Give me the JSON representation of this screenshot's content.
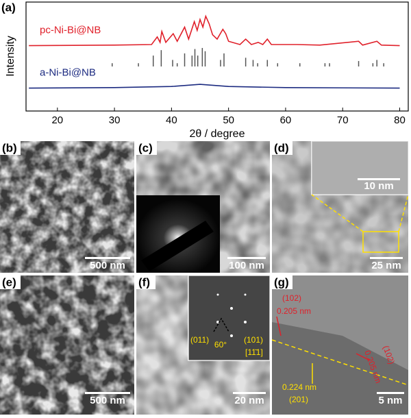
{
  "chart_data": {
    "type": "line",
    "panel_label": "(a)",
    "x_label": "2θ / degree",
    "y_label": "Intensity",
    "xlim": [
      14.5,
      81.5
    ],
    "xticks": [
      20,
      30,
      40,
      50,
      60,
      70,
      80
    ],
    "ylim": [
      0,
      100
    ],
    "series": [
      {
        "name": "pc-Ni-Bi@NB",
        "color": "#e0202a",
        "x": [
          15,
          30,
          36.5,
          37.5,
          38.0,
          38.3,
          39,
          40.3,
          41,
          42.3,
          43,
          44,
          44.5,
          45,
          45.5,
          46,
          46.6,
          47.2,
          48,
          49,
          49.5,
          50,
          52,
          53,
          54,
          55.2,
          56,
          56.8,
          57.5,
          62,
          66,
          72.8,
          73.5,
          76,
          76.8,
          80
        ],
        "values": [
          60,
          60.5,
          61,
          68,
          63,
          73,
          63,
          71,
          64,
          77,
          66,
          82,
          74,
          84,
          77,
          87,
          80,
          70,
          66,
          75,
          71,
          64,
          61,
          66,
          61,
          63,
          61,
          66,
          61,
          61,
          60.5,
          64,
          60.5,
          64,
          60.5,
          60
        ]
      },
      {
        "name": "a-Ni-Bi@NB",
        "color": "#1b2a80",
        "x": [
          15,
          30,
          40,
          45,
          50,
          60,
          80
        ],
        "values": [
          21,
          21.5,
          22.5,
          24.5,
          22.5,
          21.5,
          21
        ]
      }
    ],
    "reference": {
      "color": "#555555",
      "x": [
        29.6,
        34.2,
        36.8,
        38.2,
        40.2,
        41,
        42.3,
        43.6,
        44.1,
        44.6,
        45.4,
        45.9,
        48.6,
        49.2,
        53,
        54.3,
        55.1,
        56.8,
        58.6,
        62.5,
        66.9,
        67.7,
        72.8,
        75.3,
        76,
        77.2
      ],
      "values": [
        3,
        3,
        10,
        15,
        6,
        3,
        12,
        10,
        16,
        10,
        17,
        14,
        6,
        12,
        8,
        6,
        3,
        6,
        3,
        3,
        3,
        3,
        5,
        3,
        6,
        3
      ]
    }
  },
  "panels": [
    {
      "label": "(b)",
      "scale_bar": "500 nm"
    },
    {
      "label": "(c)",
      "scale_bar": "100 nm"
    },
    {
      "label": "(d)",
      "scale_bar": "25 nm",
      "inset_scale_bar": "10 nm"
    },
    {
      "label": "(e)",
      "scale_bar": "500 nm"
    },
    {
      "label": "(f)",
      "scale_bar": "20 nm",
      "annotations": [
        "(011)",
        "60°",
        "(101)",
        "[11̄1]"
      ]
    },
    {
      "label": "(g)",
      "scale_bar": "5 nm",
      "annotations": [
        "(102)",
        "0.205 nm",
        "0.205 nm",
        "(102)",
        "0.224 nm",
        "(201)"
      ]
    }
  ]
}
